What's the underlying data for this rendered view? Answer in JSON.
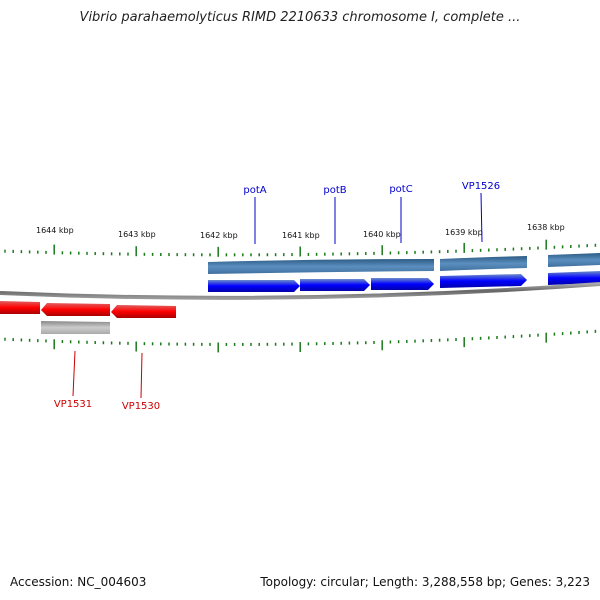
{
  "title": "Vibrio parahaemolyticus RIMD 2210633 chromosome I, complete ...",
  "accession_text": "Accession: NC_004603",
  "summary_text": "Topology: circular; Length: 3,288,558 bp; Genes: 3,223",
  "ruler": {
    "labels": [
      "1644 kbp",
      "1643 kbp",
      "1642 kbp",
      "1641 kbp",
      "1640 kbp",
      "1639 kbp",
      "1638 kbp"
    ]
  },
  "genes": [
    {
      "label": "potA",
      "color": "#0000cc"
    },
    {
      "label": "potB",
      "color": "#0000cc"
    },
    {
      "label": "potC",
      "color": "#0000cc"
    },
    {
      "label": "VP1526",
      "color": "#0000cc"
    },
    {
      "label": "VP1531",
      "color": "#cc0000"
    },
    {
      "label": "VP1530",
      "color": "#cc0000"
    }
  ],
  "colors": {
    "forward_cds": "#0000ff",
    "forward_gene": "#4a7fb0",
    "reverse_cds": "#ee0000",
    "reverse_gene": "#b0b0b0",
    "backbone": "#888888",
    "tick": "#1a7a1a"
  }
}
